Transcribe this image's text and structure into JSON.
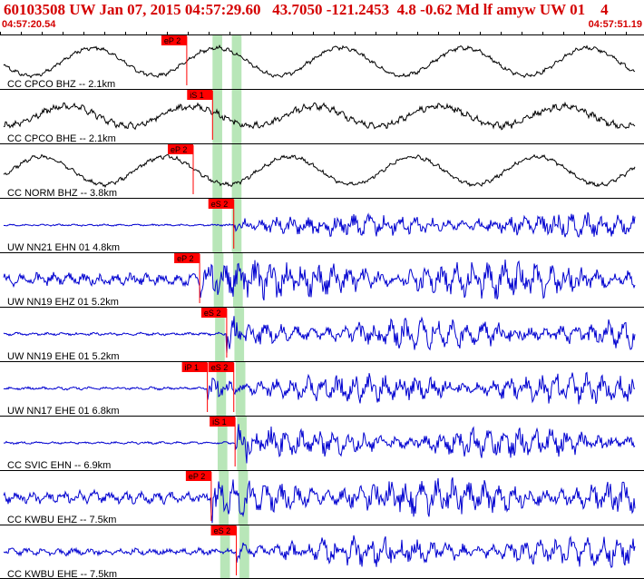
{
  "header": {
    "title": "60103508 UW Jan 07, 2015 04:57:29.60   43.7050 -121.2453  4.8 -0.62 Md lf amyw UW 01    4",
    "start_time": "04:57:20.54",
    "end_time": "04:57:51.19"
  },
  "colors": {
    "header_text": "#d40000",
    "trace_black": "#000000",
    "trace_blue": "#0000d0",
    "pick_flag": "#ff0000",
    "pick_window": "#b8e6b8"
  },
  "traces": [
    {
      "label": "CC CPCO BHZ -- 2.1km",
      "color": "black",
      "style": "longperiod",
      "amplitude": 0.85,
      "noise": 0.15,
      "picks": [
        {
          "label": "eP 2",
          "pos": 0.29
        }
      ]
    },
    {
      "label": "CC CPCO BHE -- 2.1km",
      "color": "black",
      "style": "longperiod",
      "amplitude": 0.6,
      "noise": 0.35,
      "picks": [
        {
          "label": "iS 1",
          "pos": 0.33
        }
      ]
    },
    {
      "label": "CC NORM BHZ -- 3.8km",
      "color": "black",
      "style": "longperiod",
      "amplitude": 0.85,
      "noise": 0.15,
      "picks": [
        {
          "label": "eP 2",
          "pos": 0.3
        }
      ]
    },
    {
      "label": "UW NN21 EHN 01 4.8km",
      "color": "blue",
      "style": "shortperiod",
      "amplitude": 0.55,
      "noise": 0.08,
      "picks": [
        {
          "label": "eS 2",
          "pos": 0.363
        }
      ]
    },
    {
      "label": "UW NN19 EHZ 01 5.2km",
      "color": "blue",
      "style": "shortperiod",
      "amplitude": 0.9,
      "noise": 0.35,
      "picks": [
        {
          "label": "eP 2",
          "pos": 0.31
        }
      ]
    },
    {
      "label": "UW NN19 EHE 01 5.2km",
      "color": "blue",
      "style": "shortperiod",
      "amplitude": 0.7,
      "noise": 0.1,
      "picks": [
        {
          "label": "eS 2",
          "pos": 0.352
        }
      ]
    },
    {
      "label": "UW NN17 EHE 01 6.8km",
      "color": "blue",
      "style": "shortperiod",
      "amplitude": 0.7,
      "noise": 0.1,
      "picks": [
        {
          "label": "iP 1",
          "pos": 0.322
        },
        {
          "label": "eS 2",
          "pos": 0.363
        }
      ]
    },
    {
      "label": "CC SVIC EHN -- 6.9km",
      "color": "blue",
      "style": "shortperiod",
      "amplitude": 0.7,
      "noise": 0.08,
      "picks": [
        {
          "label": "iS 1",
          "pos": 0.365
        }
      ]
    },
    {
      "label": "CC KWBU EHZ -- 7.5km",
      "color": "blue",
      "style": "shortperiod",
      "amplitude": 0.85,
      "noise": 0.35,
      "picks": [
        {
          "label": "eP 2",
          "pos": 0.328
        }
      ]
    },
    {
      "label": "CC KWBU EHE -- 7.5km",
      "color": "blue",
      "style": "shortperiod",
      "amplitude": 0.7,
      "noise": 0.25,
      "picks": [
        {
          "label": "eS 2",
          "pos": 0.367
        }
      ]
    }
  ]
}
